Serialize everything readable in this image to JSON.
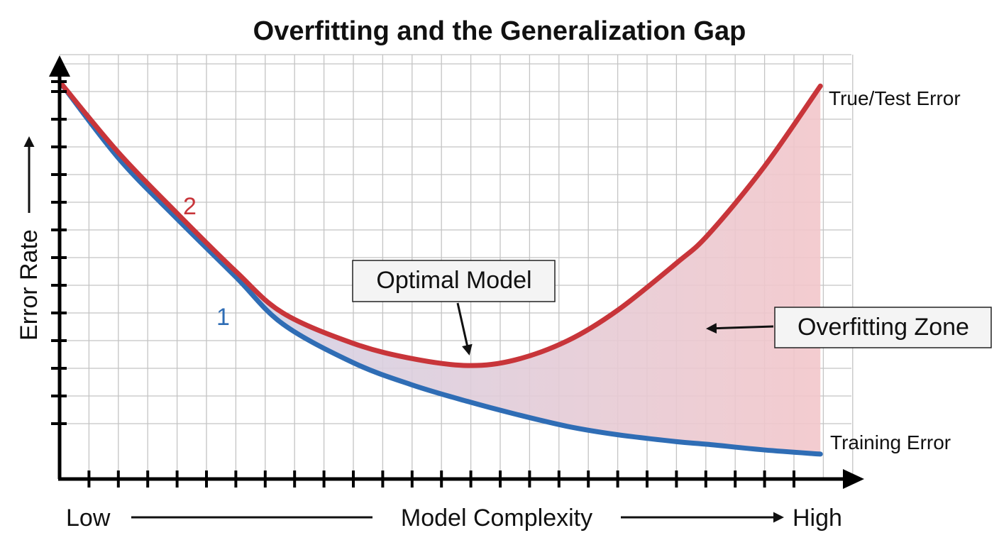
{
  "chart_data": {
    "type": "line",
    "title": "Overfitting and the Generalization Gap",
    "xlabel": "Model Complexity",
    "x_low_label": "Low",
    "x_high_label": "High",
    "ylabel": "Error Rate",
    "xlim": [
      0,
      27
    ],
    "ylim": [
      0,
      15
    ],
    "grid": true,
    "series": [
      {
        "name": "True/Test Error",
        "marker_label": "2",
        "color": "#c8353a",
        "x": [
          0,
          2,
          4,
          6,
          7.6,
          10,
          12,
          13.9,
          15.5,
          17.3,
          19,
          21,
          22.1,
          24,
          25.9
        ],
        "y": [
          14.36,
          11.8,
          9.6,
          7.5,
          6.0,
          4.9,
          4.35,
          4.1,
          4.3,
          5.0,
          6.1,
          7.8,
          8.85,
          11.3,
          14.2
        ]
      },
      {
        "name": "Training Error",
        "marker_label": "1",
        "color": "#2f6db5",
        "x": [
          0,
          2,
          4,
          6,
          7.6,
          10,
          12,
          13.9,
          15.5,
          17.3,
          19,
          21,
          22.1,
          24,
          25.9
        ],
        "y": [
          14.36,
          11.6,
          9.4,
          7.3,
          5.6,
          4.2,
          3.4,
          2.8,
          2.35,
          1.9,
          1.6,
          1.35,
          1.25,
          1.05,
          0.9
        ]
      }
    ],
    "annotations": [
      {
        "text": "Optimal Model",
        "points_to_x": 13.9
      },
      {
        "text": "Overfitting Zone"
      }
    ],
    "fill_between": {
      "from_color": "#c9d5ee",
      "to_color": "#f2c6ca"
    }
  }
}
